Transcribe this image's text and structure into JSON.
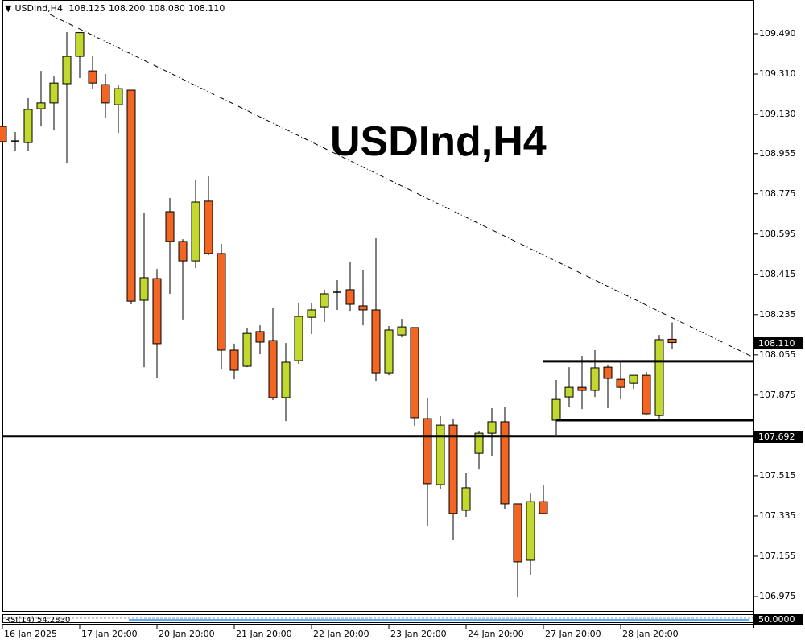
{
  "header": {
    "symbol": "USDInd,H4",
    "open": "108.125",
    "high": "108.200",
    "low": "108.080",
    "close": "108.110",
    "menu_icon": "triangle-down-icon"
  },
  "watermark_title": "USDInd,H4",
  "current_price_label": "108.110",
  "support_price_label": "107.692",
  "rsi": {
    "label": "RSI(14) 54.2830",
    "level_label": "50.0000"
  },
  "colors": {
    "bull": "#c2d82e",
    "bear": "#f26522",
    "outline": "#000000",
    "rsi_line": "#1e90ff"
  },
  "chart_data": {
    "type": "candlestick",
    "title": "USDInd,H4",
    "timeframe": "H4",
    "y_ticks": [
      "109.490",
      "109.310",
      "109.130",
      "108.955",
      "108.775",
      "108.595",
      "108.415",
      "108.235",
      "108.055",
      "107.875",
      "107.515",
      "107.335",
      "107.155",
      "106.975"
    ],
    "ylim": [
      106.93,
      109.63
    ],
    "x_ticks": [
      {
        "index": 0,
        "label": "16 Jan 2025"
      },
      {
        "index": 6,
        "label": "17 Jan 20:00"
      },
      {
        "index": 12,
        "label": "20 Jan 20:00"
      },
      {
        "index": 18,
        "label": "21 Jan 20:00"
      },
      {
        "index": 24,
        "label": "22 Jan 20:00"
      },
      {
        "index": 30,
        "label": "23 Jan 20:00"
      },
      {
        "index": 36,
        "label": "24 Jan 20:00"
      },
      {
        "index": 42,
        "label": "27 Jan 20:00"
      },
      {
        "index": 48,
        "label": "28 Jan 20:00"
      }
    ],
    "ohlc": [
      [
        109.076,
        109.119,
        108.993,
        109.008
      ],
      [
        109.011,
        109.051,
        108.968,
        109.011
      ],
      [
        109.004,
        109.202,
        108.968,
        109.152
      ],
      [
        109.155,
        109.324,
        109.076,
        109.181
      ],
      [
        109.181,
        109.299,
        109.058,
        109.27
      ],
      [
        109.267,
        109.497,
        108.911,
        109.389
      ],
      [
        109.389,
        109.497,
        109.292,
        109.495
      ],
      [
        109.324,
        109.393,
        109.245,
        109.27
      ],
      [
        109.263,
        109.31,
        109.116,
        109.181
      ],
      [
        109.173,
        109.263,
        109.047,
        109.245
      ],
      [
        109.238,
        109.238,
        108.281,
        108.295
      ],
      [
        108.299,
        108.691,
        108.0,
        108.4
      ],
      [
        108.396,
        108.439,
        107.95,
        108.105
      ],
      [
        108.695,
        108.756,
        108.328,
        108.562
      ],
      [
        108.562,
        108.572,
        108.213,
        108.475
      ],
      [
        108.475,
        108.835,
        108.443,
        108.738
      ],
      [
        108.742,
        108.853,
        108.5,
        108.508
      ],
      [
        108.508,
        108.551,
        107.99,
        108.076
      ],
      [
        108.076,
        108.105,
        107.946,
        107.986
      ],
      [
        108.004,
        108.173,
        108.0,
        108.151
      ],
      [
        108.159,
        108.187,
        108.058,
        108.112
      ],
      [
        108.119,
        108.263,
        107.853,
        107.864
      ],
      [
        107.864,
        108.108,
        107.759,
        108.022
      ],
      [
        108.029,
        108.288,
        108.015,
        108.227
      ],
      [
        108.223,
        108.288,
        108.148,
        108.256
      ],
      [
        108.27,
        108.346,
        108.202,
        108.328
      ],
      [
        108.335,
        108.389,
        108.256,
        108.335
      ],
      [
        108.346,
        108.468,
        108.252,
        108.281
      ],
      [
        108.274,
        108.436,
        108.187,
        108.256
      ],
      [
        108.256,
        108.576,
        107.939,
        107.975
      ],
      [
        107.975,
        108.184,
        107.964,
        108.166
      ],
      [
        108.144,
        108.216,
        108.133,
        108.18
      ],
      [
        108.177,
        108.177,
        107.738,
        107.774
      ],
      [
        107.77,
        107.86,
        107.288,
        107.479
      ],
      [
        107.475,
        107.781,
        107.457,
        107.741
      ],
      [
        107.741,
        107.77,
        107.227,
        107.346
      ],
      [
        107.36,
        107.529,
        107.331,
        107.461
      ],
      [
        107.615,
        107.716,
        107.543,
        107.705
      ],
      [
        107.705,
        107.817,
        107.601,
        107.756
      ],
      [
        107.756,
        107.824,
        107.367,
        107.389
      ],
      [
        107.389,
        107.389,
        106.971,
        107.13
      ],
      [
        107.137,
        107.435,
        107.072,
        107.399
      ],
      [
        107.399,
        107.471,
        107.342,
        107.346
      ],
      [
        107.763,
        107.943,
        107.698,
        107.856
      ],
      [
        107.867,
        108.0,
        107.824,
        107.91
      ],
      [
        107.91,
        108.051,
        107.813,
        107.896
      ],
      [
        107.896,
        108.076,
        107.867,
        107.997
      ],
      [
        108.0,
        108.011,
        107.817,
        107.95
      ],
      [
        107.946,
        108.022,
        107.856,
        107.91
      ],
      [
        107.928,
        107.964,
        107.903,
        107.964
      ],
      [
        107.964,
        107.979,
        107.784,
        107.792
      ],
      [
        107.784,
        108.144,
        107.766,
        108.123
      ],
      [
        108.125,
        108.2,
        108.08,
        108.11
      ]
    ],
    "horizontal_lines": [
      {
        "price": 107.692,
        "from_index": -1
      },
      {
        "price": 108.026,
        "from_index": 42
      },
      {
        "price": 107.763,
        "from_index": 43
      }
    ],
    "trendline": {
      "from": {
        "index": 3.7,
        "price": 109.576
      },
      "to": {
        "index": 58.2,
        "price": 108.047
      },
      "style": "dash-dot"
    }
  }
}
